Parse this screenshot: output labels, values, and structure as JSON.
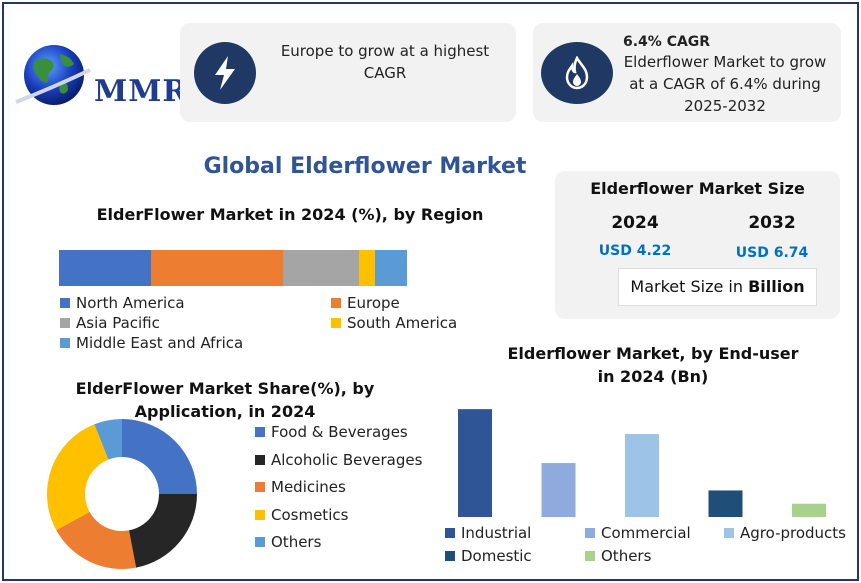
{
  "logo": {
    "text": "MMR"
  },
  "highlight_card": {
    "text": "Europe to grow at a highest CAGR",
    "icon": "lightning-icon"
  },
  "cagr_card": {
    "title": "6.4% CAGR",
    "text": "Elderflower Market to grow at a CAGR of 6.4% during 2025-2032",
    "icon": "flame-icon"
  },
  "main_title": "Global Elderflower Market",
  "market_size": {
    "title": "Elderflower Market Size",
    "year1": "2024",
    "value1": "USD 4.22",
    "year2": "2032",
    "value2": "USD 6.74",
    "unit_prefix": "Market Size in ",
    "unit_bold": "Billion"
  },
  "colors": {
    "navy": "#1f3864",
    "blue_title": "#2f5597",
    "value_blue": "#0070c0"
  },
  "chart_data": [
    {
      "type": "bar",
      "orientation": "horizontal-stacked",
      "title": "ElderFlower Market in 2024 (%), by Region",
      "series": [
        {
          "name": "North America",
          "value": 23,
          "color": "#4472c4"
        },
        {
          "name": "Europe",
          "value": 33,
          "color": "#ed7d31"
        },
        {
          "name": "Asia Pacific",
          "value": 19,
          "color": "#a5a5a5"
        },
        {
          "name": "South America",
          "value": 4,
          "color": "#ffc000"
        },
        {
          "name": "Middle East and Africa",
          "value": 8,
          "color": "#5b9bd5"
        }
      ]
    },
    {
      "type": "pie",
      "subtype": "donut",
      "title": "ElderFlower Market Share(%), by Application, in 2024",
      "slices": [
        {
          "name": "Food & Beverages",
          "value": 25,
          "color": "#4472c4"
        },
        {
          "name": "Alcoholic Beverages",
          "value": 22,
          "color": "#262626"
        },
        {
          "name": "Medicines",
          "value": 20,
          "color": "#ed7d31"
        },
        {
          "name": "Cosmetics",
          "value": 27,
          "color": "#ffc000"
        },
        {
          "name": "Others",
          "value": 6,
          "color": "#5b9bd5"
        }
      ]
    },
    {
      "type": "bar",
      "title": "Elderflower Market, by End-user in 2024 (Bn)",
      "ylim": [
        0,
        1.35
      ],
      "series": [
        {
          "name": "Industrial",
          "value": 1.3,
          "color": "#2f5597"
        },
        {
          "name": "Commercial",
          "value": 0.65,
          "color": "#8faadc"
        },
        {
          "name": "Agro-products",
          "value": 1.0,
          "color": "#9dc3e6"
        },
        {
          "name": "Domestic",
          "value": 0.32,
          "color": "#1f4e79"
        },
        {
          "name": "Others",
          "value": 0.16,
          "color": "#a9d18e"
        }
      ]
    }
  ]
}
